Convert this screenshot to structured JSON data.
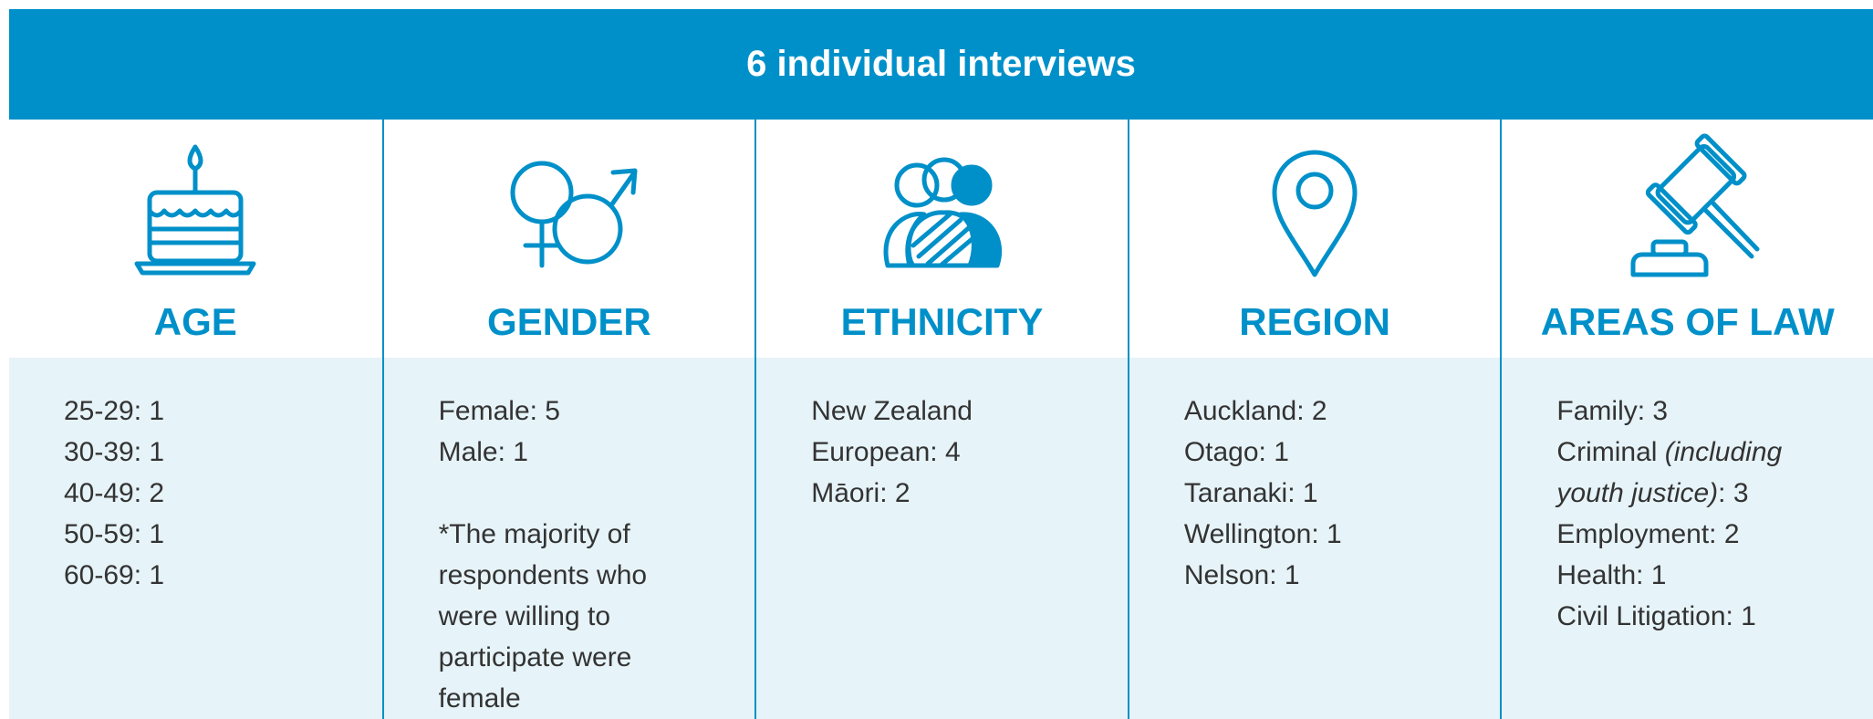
{
  "header": {
    "title": "6 individual interviews"
  },
  "columns": [
    {
      "title": "AGE",
      "items": [
        {
          "parts": [
            "25-29: 1"
          ]
        },
        {
          "parts": [
            "30-39: 1"
          ]
        },
        {
          "parts": [
            "40-49: 2"
          ]
        },
        {
          "parts": [
            "50-59: 1"
          ]
        },
        {
          "parts": [
            "60-69: 1"
          ]
        }
      ]
    },
    {
      "title": "GENDER",
      "items": [
        {
          "parts": [
            "Female: 5"
          ]
        },
        {
          "parts": [
            "Male: 1"
          ]
        }
      ],
      "note": "*The majority of respondents who were willing to participate were female"
    },
    {
      "title": "ETHNICITY",
      "items": [
        {
          "parts": [
            "New Zealand European: 4"
          ]
        },
        {
          "parts": [
            "Māori: 2"
          ]
        }
      ]
    },
    {
      "title": "REGION",
      "items": [
        {
          "parts": [
            "Auckland: 2"
          ]
        },
        {
          "parts": [
            "Otago: 1"
          ]
        },
        {
          "parts": [
            "Taranaki: 1"
          ]
        },
        {
          "parts": [
            "Wellington: 1"
          ]
        },
        {
          "parts": [
            "Nelson: 1"
          ]
        }
      ]
    },
    {
      "title": "AREAS OF LAW",
      "items": [
        {
          "parts": [
            "Family: 3"
          ]
        },
        {
          "parts": [
            "Criminal ",
            "(including youth justice)",
            ": 3"
          ],
          "italic": [
            1
          ]
        },
        {
          "parts": [
            "Employment: 2"
          ]
        },
        {
          "parts": [
            "Health: 1"
          ]
        },
        {
          "parts": [
            "Civil Litigation: 1"
          ]
        }
      ]
    }
  ]
}
